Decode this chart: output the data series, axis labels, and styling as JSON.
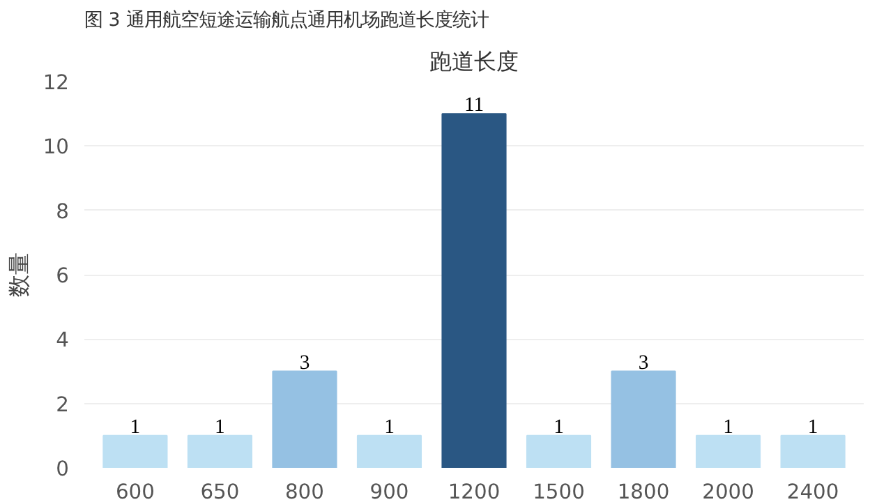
{
  "chart_data": {
    "type": "bar",
    "title": "跑道长度",
    "ylabel": "数量",
    "annotations": [
      "图 3 通用航空短途运输航点通用机场跑道长度统计"
    ],
    "categories": [
      "600",
      "650",
      "800",
      "900",
      "1200",
      "1500",
      "1800",
      "2000",
      "2400"
    ],
    "values": [
      1,
      1,
      3,
      1,
      11,
      1,
      3,
      1,
      1
    ],
    "colors": [
      "#bde0f3",
      "#bde0f3",
      "#95c1e3",
      "#bde0f3",
      "#2a5783",
      "#bde0f3",
      "#95c1e3",
      "#bde0f3",
      "#bde0f3"
    ],
    "ylim": [
      0,
      12
    ],
    "yticks": [
      0,
      2,
      4,
      6,
      8,
      10,
      12
    ],
    "grid": "y",
    "data_labels": true
  }
}
